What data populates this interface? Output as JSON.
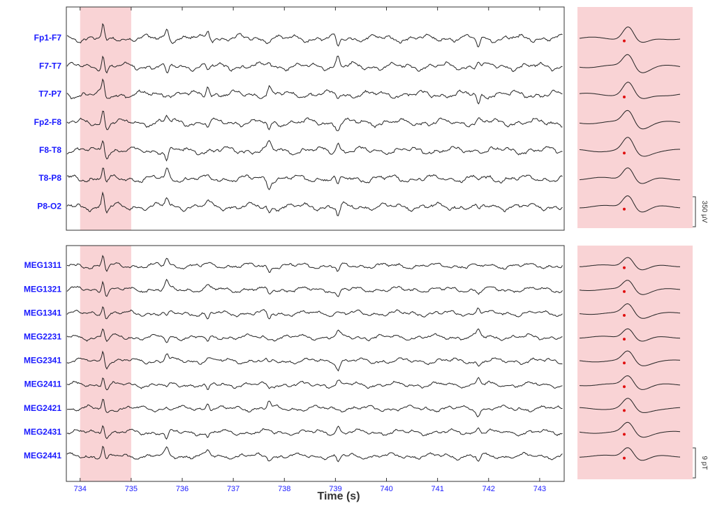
{
  "chart_data": {
    "type": "trace",
    "xlabel": "Time (s)",
    "xlim": [
      733.73,
      743.48
    ],
    "xticks": [
      734,
      735,
      736,
      737,
      738,
      739,
      740,
      741,
      742,
      743
    ],
    "highlight": [
      734,
      735
    ],
    "highlight_color": "#f9d3d5",
    "panels": [
      {
        "channels": [
          "Fp1-F7",
          "F7-T7",
          "T7-P7",
          "Fp2-F8",
          "F8-T8",
          "T8-P8",
          "P8-O2"
        ],
        "scale_label": "350 µV"
      },
      {
        "channels": [
          "MEG1311",
          "MEG1321",
          "MEG1341",
          "MEG2231",
          "MEG2341",
          "MEG2411",
          "MEG2421",
          "MEG2431",
          "MEG2441"
        ],
        "scale_label": "9 pT"
      }
    ]
  }
}
